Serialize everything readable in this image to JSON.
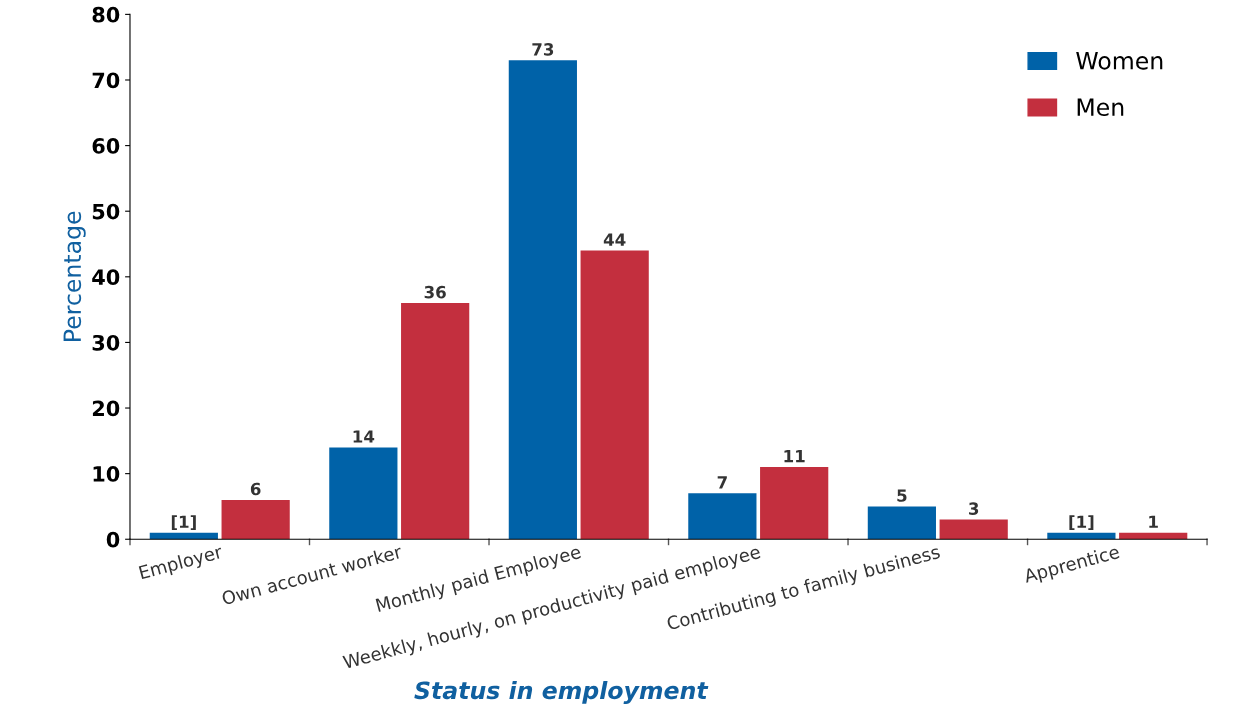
{
  "chart_data": {
    "type": "bar",
    "xlabel": "Status in employment",
    "ylabel": "Percentage",
    "categories": [
      "Employer",
      "Own account worker",
      "Monthly paid Employee",
      "Weekkly, hourly, on productivity paid employee",
      "Contributing to family business",
      "Apprentice"
    ],
    "series": [
      {
        "name": "Women",
        "color": "#0062a8",
        "values": [
          1,
          14,
          73,
          7,
          5,
          1
        ],
        "value_labels": [
          "[1]",
          "14",
          "73",
          "7",
          "5",
          "[1]"
        ]
      },
      {
        "name": "Men",
        "color": "#c32f3e",
        "values": [
          6,
          36,
          44,
          11,
          3,
          1
        ],
        "value_labels": [
          "6",
          "36",
          "44",
          "11",
          "3",
          "1"
        ]
      }
    ],
    "ylim": [
      0,
      80
    ],
    "yticks": [
      0,
      10,
      20,
      30,
      40,
      50,
      60,
      70,
      80
    ],
    "grid": false,
    "legend": "top right"
  }
}
